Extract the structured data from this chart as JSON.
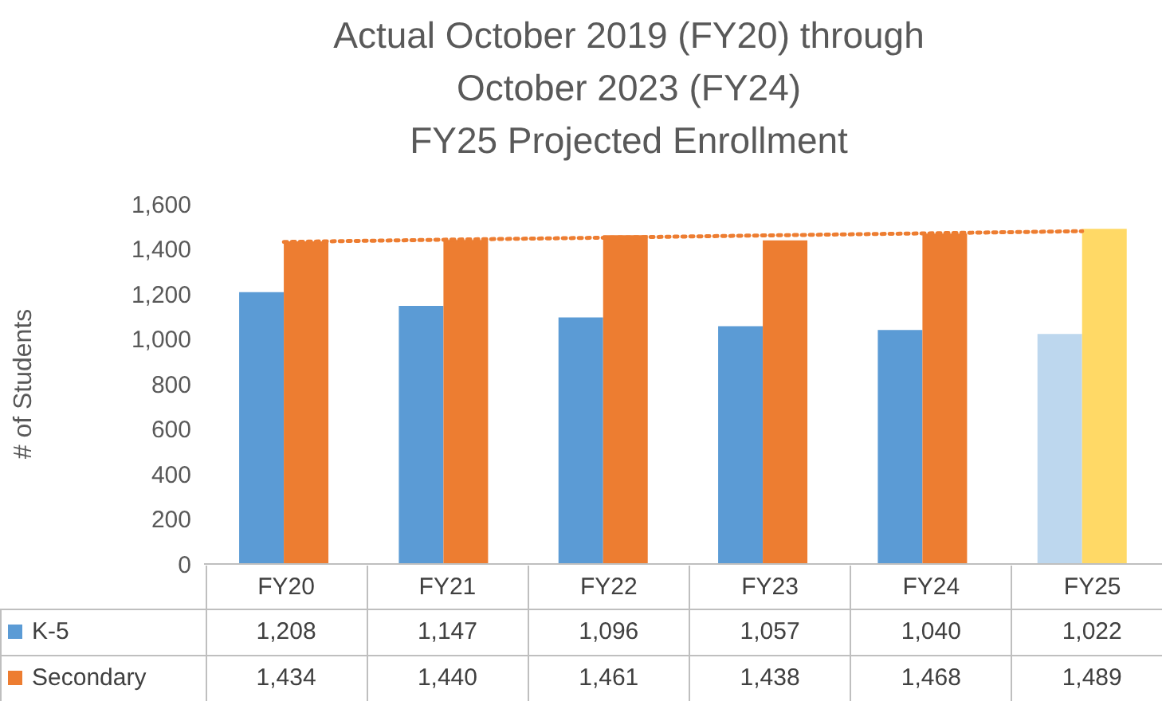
{
  "chart_data": {
    "type": "bar",
    "title": "Actual October 2019 (FY20) through\nOctober 2023 (FY24)\nFY25 Projected Enrollment",
    "ylabel": "# of Students",
    "categories": [
      "FY20",
      "FY21",
      "FY22",
      "FY23",
      "FY24",
      "FY25"
    ],
    "series": [
      {
        "name": "K-5",
        "color": "#5b9bd5",
        "colors": [
          "#5b9bd5",
          "#5b9bd5",
          "#5b9bd5",
          "#5b9bd5",
          "#5b9bd5",
          "#bdd7ee"
        ],
        "values": [
          1208,
          1147,
          1096,
          1057,
          1040,
          1022
        ],
        "value_labels": [
          "1,208",
          "1,147",
          "1,096",
          "1,057",
          "1,040",
          "1,022"
        ]
      },
      {
        "name": "Secondary",
        "color": "#ed7d31",
        "colors": [
          "#ed7d31",
          "#ed7d31",
          "#ed7d31",
          "#ed7d31",
          "#ed7d31",
          "#ffd966"
        ],
        "values": [
          1434,
          1440,
          1461,
          1438,
          1468,
          1489
        ],
        "value_labels": [
          "1,434",
          "1,440",
          "1,461",
          "1,438",
          "1,468",
          "1,489"
        ]
      },
      {
        "type": "line",
        "color": "#ed7d31",
        "line_style": "dotted",
        "marker": "none",
        "values": [
          1431,
          1441,
          1450,
          1460,
          1469,
          1479
        ]
      }
    ],
    "ylim": [
      0,
      1600
    ],
    "yticks": [
      0,
      200,
      400,
      600,
      800,
      {
        "value": 1000,
        "label": "1,000"
      },
      {
        "value": 1200,
        "label": "1,200"
      },
      {
        "value": 1400,
        "label": "1,400"
      },
      {
        "value": 1600,
        "label": "1,600"
      }
    ],
    "legend": "bottom"
  }
}
